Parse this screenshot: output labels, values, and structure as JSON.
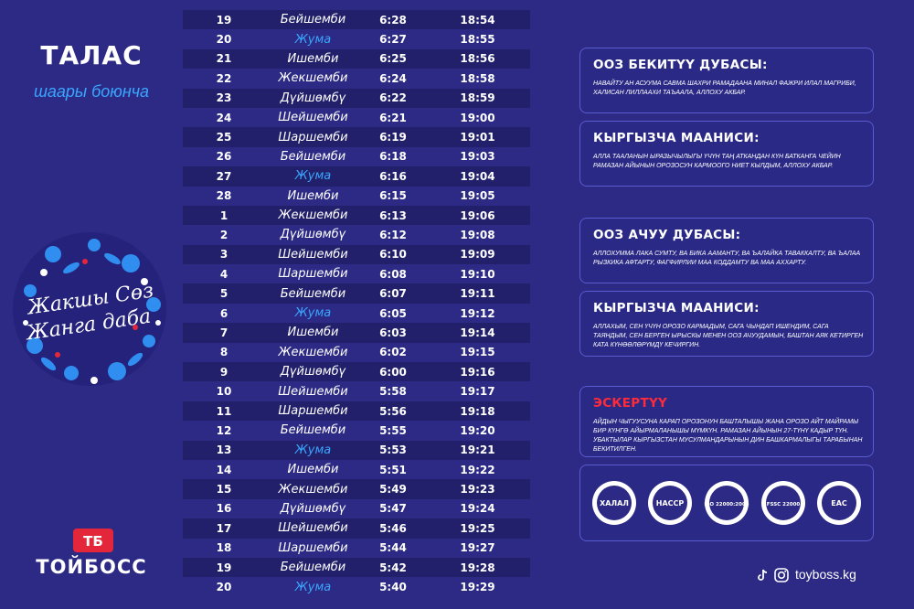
{
  "region": {
    "title": "ТАЛАС",
    "subtitle": "шаары боюнча"
  },
  "slogan": {
    "line1": "Жакшы Сөз",
    "line2": "Жанга даба"
  },
  "brand": {
    "mark": "ТБ",
    "name": "ТОЙБОСС"
  },
  "schedule": [
    {
      "day": "19",
      "weekday": "Бейшемби",
      "suhoor": "6:28",
      "iftar": "18:54",
      "friday": false
    },
    {
      "day": "20",
      "weekday": "Жума",
      "suhoor": "6:27",
      "iftar": "18:55",
      "friday": true
    },
    {
      "day": "21",
      "weekday": "Ишемби",
      "suhoor": "6:25",
      "iftar": "18:56",
      "friday": false
    },
    {
      "day": "22",
      "weekday": "Жекшемби",
      "suhoor": "6:24",
      "iftar": "18:58",
      "friday": false
    },
    {
      "day": "23",
      "weekday": "Дүйшөмбү",
      "suhoor": "6:22",
      "iftar": "18:59",
      "friday": false
    },
    {
      "day": "24",
      "weekday": "Шейшемби",
      "suhoor": "6:21",
      "iftar": "19:00",
      "friday": false
    },
    {
      "day": "25",
      "weekday": "Шаршемби",
      "suhoor": "6:19",
      "iftar": "19:01",
      "friday": false
    },
    {
      "day": "26",
      "weekday": "Бейшемби",
      "suhoor": "6:18",
      "iftar": "19:03",
      "friday": false
    },
    {
      "day": "27",
      "weekday": "Жума",
      "suhoor": "6:16",
      "iftar": "19:04",
      "friday": true
    },
    {
      "day": "28",
      "weekday": "Ишемби",
      "suhoor": "6:15",
      "iftar": "19:05",
      "friday": false
    },
    {
      "day": "1",
      "weekday": "Жекшемби",
      "suhoor": "6:13",
      "iftar": "19:06",
      "friday": false
    },
    {
      "day": "2",
      "weekday": "Дүйшөмбү",
      "suhoor": "6:12",
      "iftar": "19:08",
      "friday": false
    },
    {
      "day": "3",
      "weekday": "Шейшемби",
      "suhoor": "6:10",
      "iftar": "19:09",
      "friday": false
    },
    {
      "day": "4",
      "weekday": "Шаршемби",
      "suhoor": "6:08",
      "iftar": "19:10",
      "friday": false
    },
    {
      "day": "5",
      "weekday": "Бейшемби",
      "suhoor": "6:07",
      "iftar": "19:11",
      "friday": false
    },
    {
      "day": "6",
      "weekday": "Жума",
      "suhoor": "6:05",
      "iftar": "19:12",
      "friday": true
    },
    {
      "day": "7",
      "weekday": "Ишемби",
      "suhoor": "6:03",
      "iftar": "19:14",
      "friday": false
    },
    {
      "day": "8",
      "weekday": "Жекшемби",
      "suhoor": "6:02",
      "iftar": "19:15",
      "friday": false
    },
    {
      "day": "9",
      "weekday": "Дүйшөмбү",
      "suhoor": "6:00",
      "iftar": "19:16",
      "friday": false
    },
    {
      "day": "10",
      "weekday": "Шейшемби",
      "suhoor": "5:58",
      "iftar": "19:17",
      "friday": false
    },
    {
      "day": "11",
      "weekday": "Шаршемби",
      "suhoor": "5:56",
      "iftar": "19:18",
      "friday": false
    },
    {
      "day": "12",
      "weekday": "Бейшемби",
      "suhoor": "5:55",
      "iftar": "19:20",
      "friday": false
    },
    {
      "day": "13",
      "weekday": "Жума",
      "suhoor": "5:53",
      "iftar": "19:21",
      "friday": true
    },
    {
      "day": "14",
      "weekday": "Ишемби",
      "suhoor": "5:51",
      "iftar": "19:22",
      "friday": false
    },
    {
      "day": "15",
      "weekday": "Жекшемби",
      "suhoor": "5:49",
      "iftar": "19:23",
      "friday": false
    },
    {
      "day": "16",
      "weekday": "Дүйшөмбү",
      "suhoor": "5:47",
      "iftar": "19:24",
      "friday": false
    },
    {
      "day": "17",
      "weekday": "Шейшемби",
      "suhoor": "5:46",
      "iftar": "19:25",
      "friday": false
    },
    {
      "day": "18",
      "weekday": "Шаршемби",
      "suhoor": "5:44",
      "iftar": "19:27",
      "friday": false
    },
    {
      "day": "19",
      "weekday": "Бейшемби",
      "suhoor": "5:42",
      "iftar": "19:28",
      "friday": false
    },
    {
      "day": "20",
      "weekday": "Жума",
      "suhoor": "5:40",
      "iftar": "19:29",
      "friday": true
    }
  ],
  "cards": {
    "suhoor_dua": {
      "title": "ООЗ БЕКИТҮҮ ДУБАСЫ:",
      "text": "НАВАЙТУ АН АСУУМА САВМА ШАХРИ РАМАДААНА МИНАЛ ФАЖРИ ИЛАЛ МАГРИБИ, ХАЛИСАН ЛИЛЛААХИ ТАЪААЛА, АЛЛОХУ АКБАР."
    },
    "suhoor_meaning": {
      "title": "КЫРГЫЗЧА МААНИСИ:",
      "text": "АЛЛА ТААЛАНЫН ЫРАЗЫЧЫЛЫГЫ ҮЧҮН ТАҢ АТКАНДАН КҮН БАТКАНГА ЧЕЙИН РАМАЗАН АЙЫНЫН ОРОЗОСУН КАРМООГО НИЕТ КЫЛДЫМ, АЛЛОХУ АКБАР."
    },
    "iftar_dua": {
      "title": "ООЗ  АЧУУ ДУБАСЫ:",
      "text": "АЛЛОХУММА ЛАКА СУМТУ, ВА БИКА ААМАНТУ, ВА ЪАЛАЙКА ТАВАККАЛТУ, ВА ЪАЛАА РЫЗКИКА АФТАРТУ, ФАГФИРЛИИ МАА КОДДАМТУ ВА МАА АХХАРТУ."
    },
    "iftar_meaning": {
      "title": "КЫРГЫЗЧА МААНИСИ:",
      "text": "АЛЛАХЫМ, СЕН ҮЧҮН ОРОЗО КАРМАДЫМ, САГА ЧЫНДАП ИШЕНДИМ, САГА ТАЯНДЫМ, СЕН БЕРГЕН ЫРЫСКЫ МЕНЕН ООЗ АЧУУДАМЫН, БАШТАН АЯК КЕТИРГЕН КАТА КҮНӨӨЛӨРҮМДҮ КЕЧИРГИН."
    },
    "note": {
      "title": "ЭСКЕРТҮҮ",
      "text": "АЙДЫН ЧЫГУУСУНА КАРАП ОРОЗОНУН БАШТАЛЫШЫ ЖАНА ОРОЗО АЙТ МАЙРАМЫ БИР КҮНГӨ АЙЫРМАЛАНЫШЫ МҮМКҮН. РАМАЗАН АЙЫНЫН 27-ТҮНҮ КАДЫР ТҮН. УБАКТЫЛАР КЫРГЫЗСТАН МУСУЛМАНДАРЫНЫН ДИН БАШКАРМАЛЫГЫ ТАРАБЫНАН БЕКИТИЛГЕН."
    }
  },
  "certs": [
    {
      "label": "ХАЛАЛ"
    },
    {
      "label": "HACCP"
    },
    {
      "label": "ISO 22000:2005"
    },
    {
      "label": "FSSC 22000"
    },
    {
      "label": "EAC"
    }
  ],
  "footer": {
    "website": "toyboss.kg",
    "icons": [
      "tiktok-icon",
      "instagram-icon"
    ]
  },
  "colors": {
    "background": "#2c2a84",
    "accent_blue": "#3aa6ff",
    "note_red": "#ff2a3a"
  }
}
